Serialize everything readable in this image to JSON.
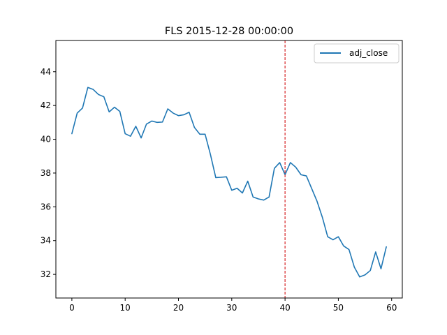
{
  "chart_data": {
    "type": "line",
    "title": "FLS 2015-12-28 00:00:00",
    "xlabel": "",
    "ylabel": "",
    "xlim": [
      -3,
      62
    ],
    "ylim": [
      30.6,
      45.85
    ],
    "x_ticks": [
      0,
      10,
      20,
      30,
      40,
      50,
      60
    ],
    "y_ticks": [
      32,
      34,
      36,
      38,
      40,
      42,
      44
    ],
    "grid": false,
    "legend_position": "top-right",
    "series": [
      {
        "name": "adj_close",
        "color": "#1f77b4",
        "x": [
          0,
          1,
          2,
          3,
          4,
          5,
          6,
          7,
          8,
          9,
          10,
          11,
          12,
          13,
          14,
          15,
          16,
          17,
          18,
          19,
          20,
          21,
          22,
          23,
          24,
          25,
          26,
          27,
          28,
          29,
          30,
          31,
          32,
          33,
          34,
          35,
          36,
          37,
          38,
          39,
          40,
          41,
          42,
          43,
          44,
          45,
          46,
          47,
          48,
          49,
          50,
          51,
          52,
          53,
          54,
          55,
          56,
          57,
          58,
          59
        ],
        "y": [
          40.33,
          41.55,
          41.85,
          43.07,
          42.95,
          42.65,
          42.52,
          41.62,
          41.9,
          41.65,
          40.33,
          40.18,
          40.77,
          40.08,
          40.9,
          41.08,
          41.0,
          41.02,
          41.8,
          41.55,
          41.4,
          41.45,
          41.6,
          40.7,
          40.3,
          40.3,
          39.1,
          37.73,
          37.75,
          37.78,
          36.98,
          37.1,
          36.82,
          37.52,
          36.58,
          36.47,
          36.4,
          36.58,
          38.28,
          38.62,
          37.9,
          38.62,
          38.35,
          37.9,
          37.83,
          37.08,
          36.33,
          35.38,
          34.23,
          34.05,
          34.23,
          33.68,
          33.47,
          32.43,
          31.85,
          31.97,
          32.23,
          33.33,
          32.33,
          33.63
        ]
      }
    ],
    "annotations": [
      {
        "type": "vline",
        "x": 40,
        "color": "#d62728",
        "style": "dashed"
      }
    ]
  }
}
